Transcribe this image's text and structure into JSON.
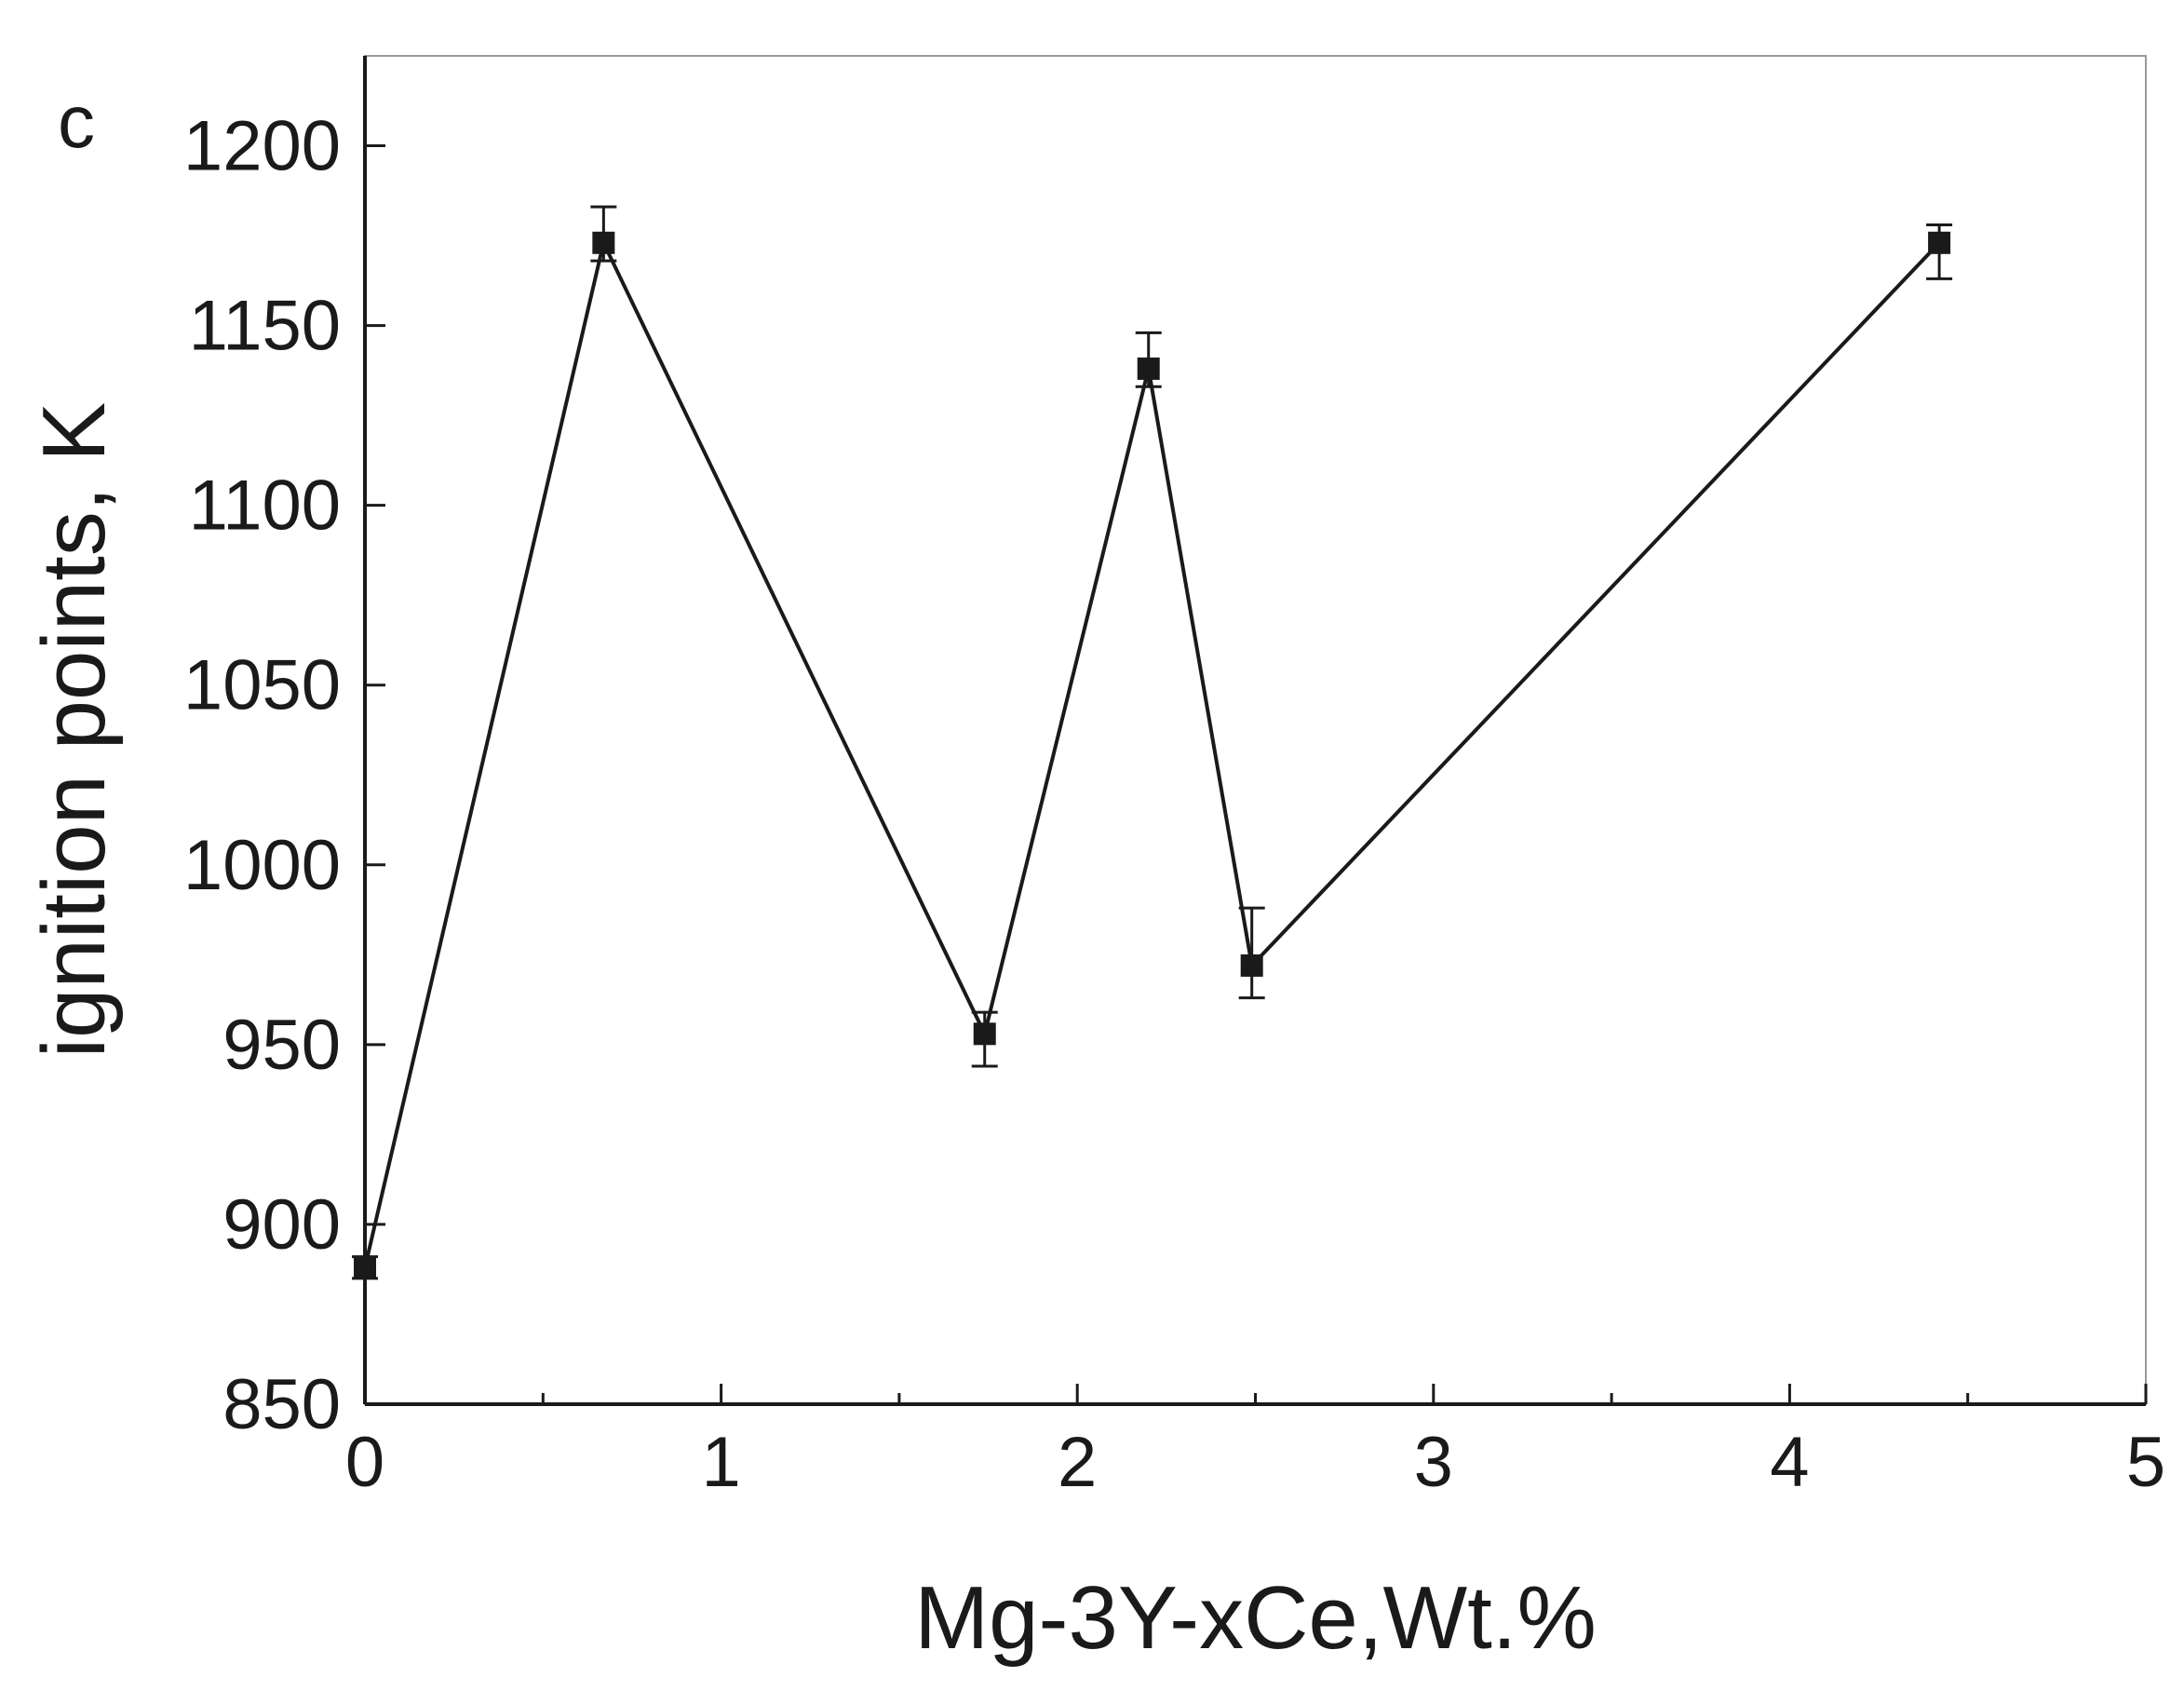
{
  "chart_data": {
    "type": "line",
    "panel_label": "c",
    "xlabel": "Mg-3Y-xCe,Wt.%",
    "ylabel": "ignition points, K",
    "xlim": [
      0,
      5
    ],
    "ylim": [
      850,
      1225
    ],
    "x_ticks": [
      0,
      1,
      2,
      3,
      4,
      5
    ],
    "x_tick_labels": [
      "0",
      "1",
      "2",
      "3",
      "4",
      "5"
    ],
    "x_minor_ticks": [
      0.5,
      1.5,
      2.5,
      3.5,
      4.5
    ],
    "y_ticks": [
      850,
      900,
      950,
      1000,
      1050,
      1100,
      1150,
      1200
    ],
    "y_tick_labels": [
      "850",
      "900",
      "950",
      "1000",
      "1050",
      "1100",
      "1150",
      "1200"
    ],
    "grid": false,
    "marker": "square",
    "line_color": "#1a1a1a",
    "series": [
      {
        "x": [
          0.0,
          0.67,
          1.74,
          2.2,
          2.49,
          4.42
        ],
        "y": [
          888,
          1173,
          953,
          1138,
          972,
          1173
        ],
        "err_low": [
          3,
          5,
          9,
          5,
          9,
          10
        ],
        "err_high": [
          3,
          10,
          6,
          10,
          16,
          5
        ]
      }
    ]
  }
}
